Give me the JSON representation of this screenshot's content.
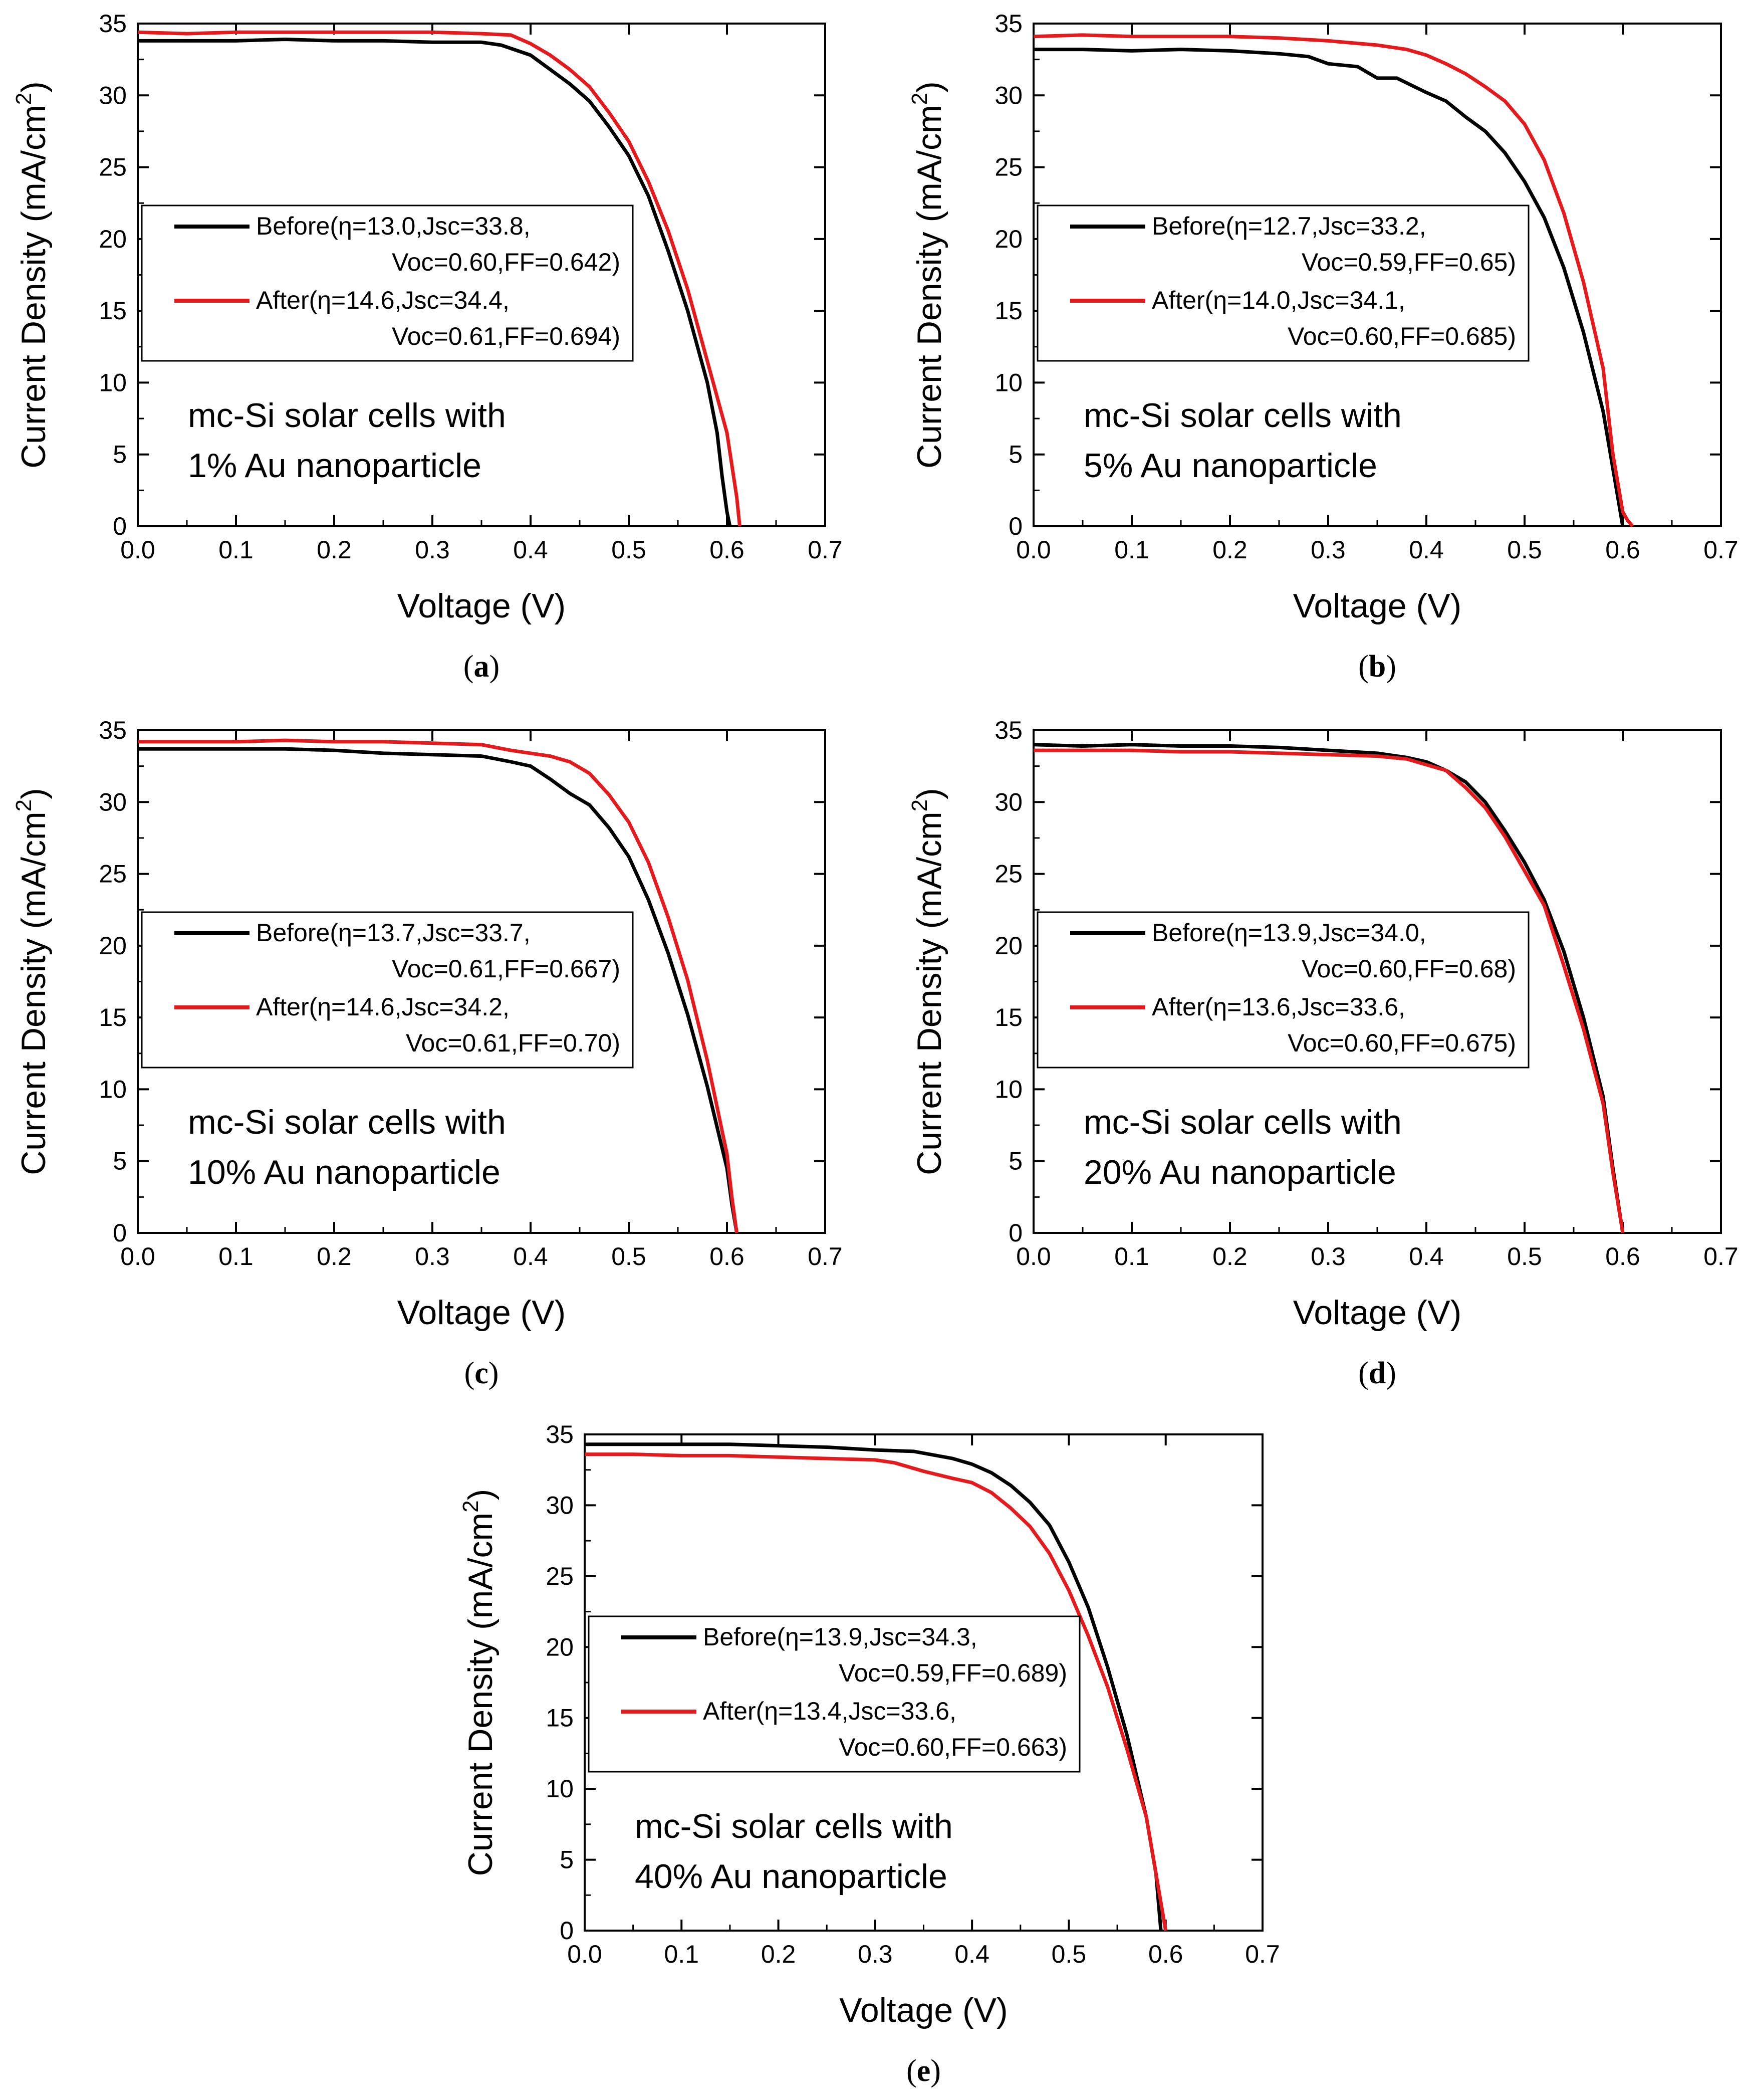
{
  "figure": {
    "colors": {
      "before": "#000000",
      "after": "#e41a1c"
    }
  },
  "chart_data": [
    {
      "type": "line",
      "panel": "a",
      "caption": "a",
      "xlabel": "Voltage (V)",
      "ylabel": "Current Density (mA/cm",
      "ylabel_sup": "2",
      "ylabel_close": ")",
      "xlim": [
        0,
        0.7
      ],
      "ylim": [
        0,
        35
      ],
      "x_ticks": [
        "0.0",
        "0.1",
        "0.2",
        "0.3",
        "0.4",
        "0.5",
        "0.6",
        "0.7"
      ],
      "y_ticks": [
        "0",
        "5",
        "10",
        "15",
        "20",
        "25",
        "30",
        "35"
      ],
      "legend": [
        {
          "line1": "Before(η=13.0,Jsc=33.8,",
          "line2": "Voc=0.60,FF=0.642)"
        },
        {
          "line1": "After(η=14.6,Jsc=34.4,",
          "line2": "Voc=0.61,FF=0.694)"
        }
      ],
      "annotation": [
        "mc-Si solar cells with",
        "1% Au nanoparticle"
      ],
      "series": [
        {
          "name": "Before",
          "color": "#000000",
          "x": [
            0,
            0.05,
            0.1,
            0.15,
            0.2,
            0.25,
            0.3,
            0.35,
            0.37,
            0.4,
            0.42,
            0.44,
            0.46,
            0.48,
            0.5,
            0.52,
            0.54,
            0.56,
            0.58,
            0.59,
            0.595,
            0.6,
            0.603
          ],
          "y": [
            33.8,
            33.8,
            33.8,
            33.9,
            33.8,
            33.8,
            33.7,
            33.7,
            33.5,
            32.8,
            31.8,
            30.8,
            29.6,
            27.8,
            25.8,
            23.0,
            19.2,
            15.0,
            10.0,
            6.5,
            3.5,
            1.0,
            0
          ]
        },
        {
          "name": "After",
          "color": "#e41a1c",
          "x": [
            0,
            0.05,
            0.1,
            0.15,
            0.2,
            0.25,
            0.3,
            0.35,
            0.38,
            0.4,
            0.42,
            0.44,
            0.46,
            0.48,
            0.5,
            0.52,
            0.54,
            0.56,
            0.58,
            0.6,
            0.61,
            0.613
          ],
          "y": [
            34.4,
            34.3,
            34.4,
            34.4,
            34.4,
            34.4,
            34.4,
            34.3,
            34.2,
            33.6,
            32.8,
            31.8,
            30.6,
            28.8,
            26.8,
            24.0,
            20.6,
            16.5,
            11.5,
            6.5,
            2.0,
            0
          ]
        }
      ]
    },
    {
      "type": "line",
      "panel": "b",
      "caption": "b",
      "xlabel": "Voltage (V)",
      "ylabel": "Current Density (mA/cm",
      "ylabel_sup": "2",
      "ylabel_close": ")",
      "xlim": [
        0,
        0.7
      ],
      "ylim": [
        0,
        35
      ],
      "x_ticks": [
        "0.0",
        "0.1",
        "0.2",
        "0.3",
        "0.4",
        "0.5",
        "0.6",
        "0.7"
      ],
      "y_ticks": [
        "0",
        "5",
        "10",
        "15",
        "20",
        "25",
        "30",
        "35"
      ],
      "legend": [
        {
          "line1": "Before(η=12.7,Jsc=33.2,",
          "line2": "Voc=0.59,FF=0.65)"
        },
        {
          "line1": "After(η=14.0,Jsc=34.1,",
          "line2": "Voc=0.60,FF=0.685)"
        }
      ],
      "annotation": [
        "mc-Si solar cells with",
        "5% Au nanoparticle"
      ],
      "series": [
        {
          "name": "Before",
          "color": "#000000",
          "x": [
            0,
            0.05,
            0.1,
            0.15,
            0.2,
            0.25,
            0.28,
            0.3,
            0.33,
            0.35,
            0.37,
            0.4,
            0.42,
            0.44,
            0.46,
            0.48,
            0.5,
            0.52,
            0.54,
            0.56,
            0.58,
            0.59,
            0.6
          ],
          "y": [
            33.2,
            33.2,
            33.1,
            33.2,
            33.1,
            32.9,
            32.7,
            32.2,
            32.0,
            31.2,
            31.2,
            30.2,
            29.6,
            28.5,
            27.5,
            26.0,
            24.0,
            21.5,
            18.0,
            13.5,
            8.0,
            4.0,
            0
          ]
        },
        {
          "name": "After",
          "color": "#e41a1c",
          "x": [
            0,
            0.05,
            0.1,
            0.15,
            0.2,
            0.25,
            0.3,
            0.35,
            0.38,
            0.4,
            0.42,
            0.44,
            0.46,
            0.48,
            0.5,
            0.52,
            0.54,
            0.56,
            0.58,
            0.59,
            0.6,
            0.605,
            0.61
          ],
          "y": [
            34.1,
            34.2,
            34.1,
            34.1,
            34.1,
            34.0,
            33.8,
            33.5,
            33.2,
            32.8,
            32.2,
            31.5,
            30.6,
            29.6,
            28.0,
            25.5,
            21.8,
            17.0,
            11.0,
            5.0,
            1.0,
            0.4,
            0
          ]
        }
      ]
    },
    {
      "type": "line",
      "panel": "c",
      "caption": "c",
      "xlabel": "Voltage (V)",
      "ylabel": "Current Density (mA/cm",
      "ylabel_sup": "2",
      "ylabel_close": ")",
      "xlim": [
        0,
        0.7
      ],
      "ylim": [
        0,
        35
      ],
      "x_ticks": [
        "0.0",
        "0.1",
        "0.2",
        "0.3",
        "0.4",
        "0.5",
        "0.6",
        "0.7"
      ],
      "y_ticks": [
        "0",
        "5",
        "10",
        "15",
        "20",
        "25",
        "30",
        "35"
      ],
      "legend": [
        {
          "line1": "Before(η=13.7,Jsc=33.7,",
          "line2": "Voc=0.61,FF=0.667)"
        },
        {
          "line1": "After(η=14.6,Jsc=34.2,",
          "line2": "Voc=0.61,FF=0.70)"
        }
      ],
      "annotation": [
        "mc-Si solar cells with",
        "10% Au nanoparticle"
      ],
      "series": [
        {
          "name": "Before",
          "color": "#000000",
          "x": [
            0,
            0.05,
            0.1,
            0.15,
            0.2,
            0.25,
            0.3,
            0.35,
            0.38,
            0.4,
            0.42,
            0.44,
            0.46,
            0.48,
            0.5,
            0.52,
            0.54,
            0.56,
            0.58,
            0.6,
            0.605,
            0.61
          ],
          "y": [
            33.7,
            33.7,
            33.7,
            33.7,
            33.6,
            33.4,
            33.3,
            33.2,
            32.8,
            32.5,
            31.6,
            30.6,
            29.8,
            28.2,
            26.2,
            23.2,
            19.5,
            15.2,
            10.2,
            4.5,
            2.0,
            0
          ]
        },
        {
          "name": "After",
          "color": "#e41a1c",
          "x": [
            0,
            0.05,
            0.1,
            0.15,
            0.2,
            0.25,
            0.3,
            0.35,
            0.38,
            0.4,
            0.42,
            0.44,
            0.46,
            0.48,
            0.5,
            0.52,
            0.54,
            0.56,
            0.58,
            0.6,
            0.605,
            0.61
          ],
          "y": [
            34.2,
            34.2,
            34.2,
            34.3,
            34.2,
            34.2,
            34.1,
            34.0,
            33.6,
            33.4,
            33.2,
            32.8,
            32.0,
            30.5,
            28.6,
            25.8,
            22.0,
            17.6,
            12.0,
            5.5,
            2.5,
            0
          ]
        }
      ]
    },
    {
      "type": "line",
      "panel": "d",
      "caption": "d",
      "xlabel": "Voltage (V)",
      "ylabel": "Current Density (mA/cm",
      "ylabel_sup": "2",
      "ylabel_close": ")",
      "xlim": [
        0,
        0.7
      ],
      "ylim": [
        0,
        35
      ],
      "x_ticks": [
        "0.0",
        "0.1",
        "0.2",
        "0.3",
        "0.4",
        "0.5",
        "0.6",
        "0.7"
      ],
      "y_ticks": [
        "0",
        "5",
        "10",
        "15",
        "20",
        "25",
        "30",
        "35"
      ],
      "legend": [
        {
          "line1": "Before(η=13.9,Jsc=34.0,",
          "line2": "Voc=0.60,FF=0.68)"
        },
        {
          "line1": "After(η=13.6,Jsc=33.6,",
          "line2": "Voc=0.60,FF=0.675)"
        }
      ],
      "annotation": [
        "mc-Si solar cells with",
        "20% Au nanoparticle"
      ],
      "series": [
        {
          "name": "Before",
          "color": "#000000",
          "x": [
            0,
            0.05,
            0.1,
            0.15,
            0.2,
            0.25,
            0.3,
            0.35,
            0.38,
            0.4,
            0.42,
            0.44,
            0.46,
            0.48,
            0.5,
            0.52,
            0.54,
            0.56,
            0.58,
            0.59,
            0.6
          ],
          "y": [
            34.0,
            33.9,
            34.0,
            33.9,
            33.9,
            33.8,
            33.6,
            33.4,
            33.1,
            32.8,
            32.2,
            31.4,
            30.0,
            28.0,
            25.8,
            23.2,
            19.6,
            15.0,
            9.5,
            4.5,
            0
          ]
        },
        {
          "name": "After",
          "color": "#e41a1c",
          "x": [
            0,
            0.05,
            0.1,
            0.15,
            0.2,
            0.25,
            0.3,
            0.35,
            0.38,
            0.4,
            0.42,
            0.44,
            0.46,
            0.48,
            0.5,
            0.52,
            0.54,
            0.56,
            0.58,
            0.59,
            0.6
          ],
          "y": [
            33.6,
            33.6,
            33.6,
            33.5,
            33.5,
            33.4,
            33.3,
            33.2,
            33.0,
            32.6,
            32.2,
            31.0,
            29.6,
            27.6,
            25.2,
            22.8,
            18.6,
            14.2,
            9.0,
            4.2,
            0
          ]
        }
      ]
    },
    {
      "type": "line",
      "panel": "e",
      "caption": "e",
      "xlabel": "Voltage (V)",
      "ylabel": "Current Density (mA/cm",
      "ylabel_sup": "2",
      "ylabel_close": ")",
      "xlim": [
        0,
        0.7
      ],
      "ylim": [
        0,
        35
      ],
      "x_ticks": [
        "0.0",
        "0.1",
        "0.2",
        "0.3",
        "0.4",
        "0.5",
        "0.6",
        "0.7"
      ],
      "y_ticks": [
        "0",
        "5",
        "10",
        "15",
        "20",
        "25",
        "30",
        "35"
      ],
      "legend": [
        {
          "line1": "Before(η=13.9,Jsc=34.3,",
          "line2": "Voc=0.59,FF=0.689)"
        },
        {
          "line1": "After(η=13.4,Jsc=33.6,",
          "line2": "Voc=0.60,FF=0.663)"
        }
      ],
      "annotation": [
        "mc-Si solar cells with",
        "40% Au nanoparticle"
      ],
      "series": [
        {
          "name": "Before",
          "color": "#000000",
          "x": [
            0,
            0.05,
            0.1,
            0.15,
            0.2,
            0.25,
            0.3,
            0.34,
            0.38,
            0.4,
            0.42,
            0.44,
            0.46,
            0.48,
            0.5,
            0.52,
            0.54,
            0.56,
            0.58,
            0.59,
            0.595
          ],
          "y": [
            34.3,
            34.3,
            34.3,
            34.3,
            34.2,
            34.1,
            33.9,
            33.8,
            33.3,
            32.9,
            32.3,
            31.4,
            30.2,
            28.6,
            26.0,
            22.8,
            18.6,
            13.8,
            8.0,
            4.0,
            0
          ]
        },
        {
          "name": "After",
          "color": "#e41a1c",
          "x": [
            0,
            0.05,
            0.1,
            0.15,
            0.2,
            0.25,
            0.3,
            0.32,
            0.35,
            0.38,
            0.4,
            0.42,
            0.44,
            0.46,
            0.48,
            0.5,
            0.52,
            0.54,
            0.56,
            0.58,
            0.59,
            0.6
          ],
          "y": [
            33.6,
            33.6,
            33.5,
            33.5,
            33.4,
            33.3,
            33.2,
            33.0,
            32.4,
            31.9,
            31.6,
            30.9,
            29.8,
            28.5,
            26.6,
            24.0,
            20.8,
            17.2,
            12.8,
            8.0,
            4.0,
            0
          ]
        }
      ]
    }
  ]
}
